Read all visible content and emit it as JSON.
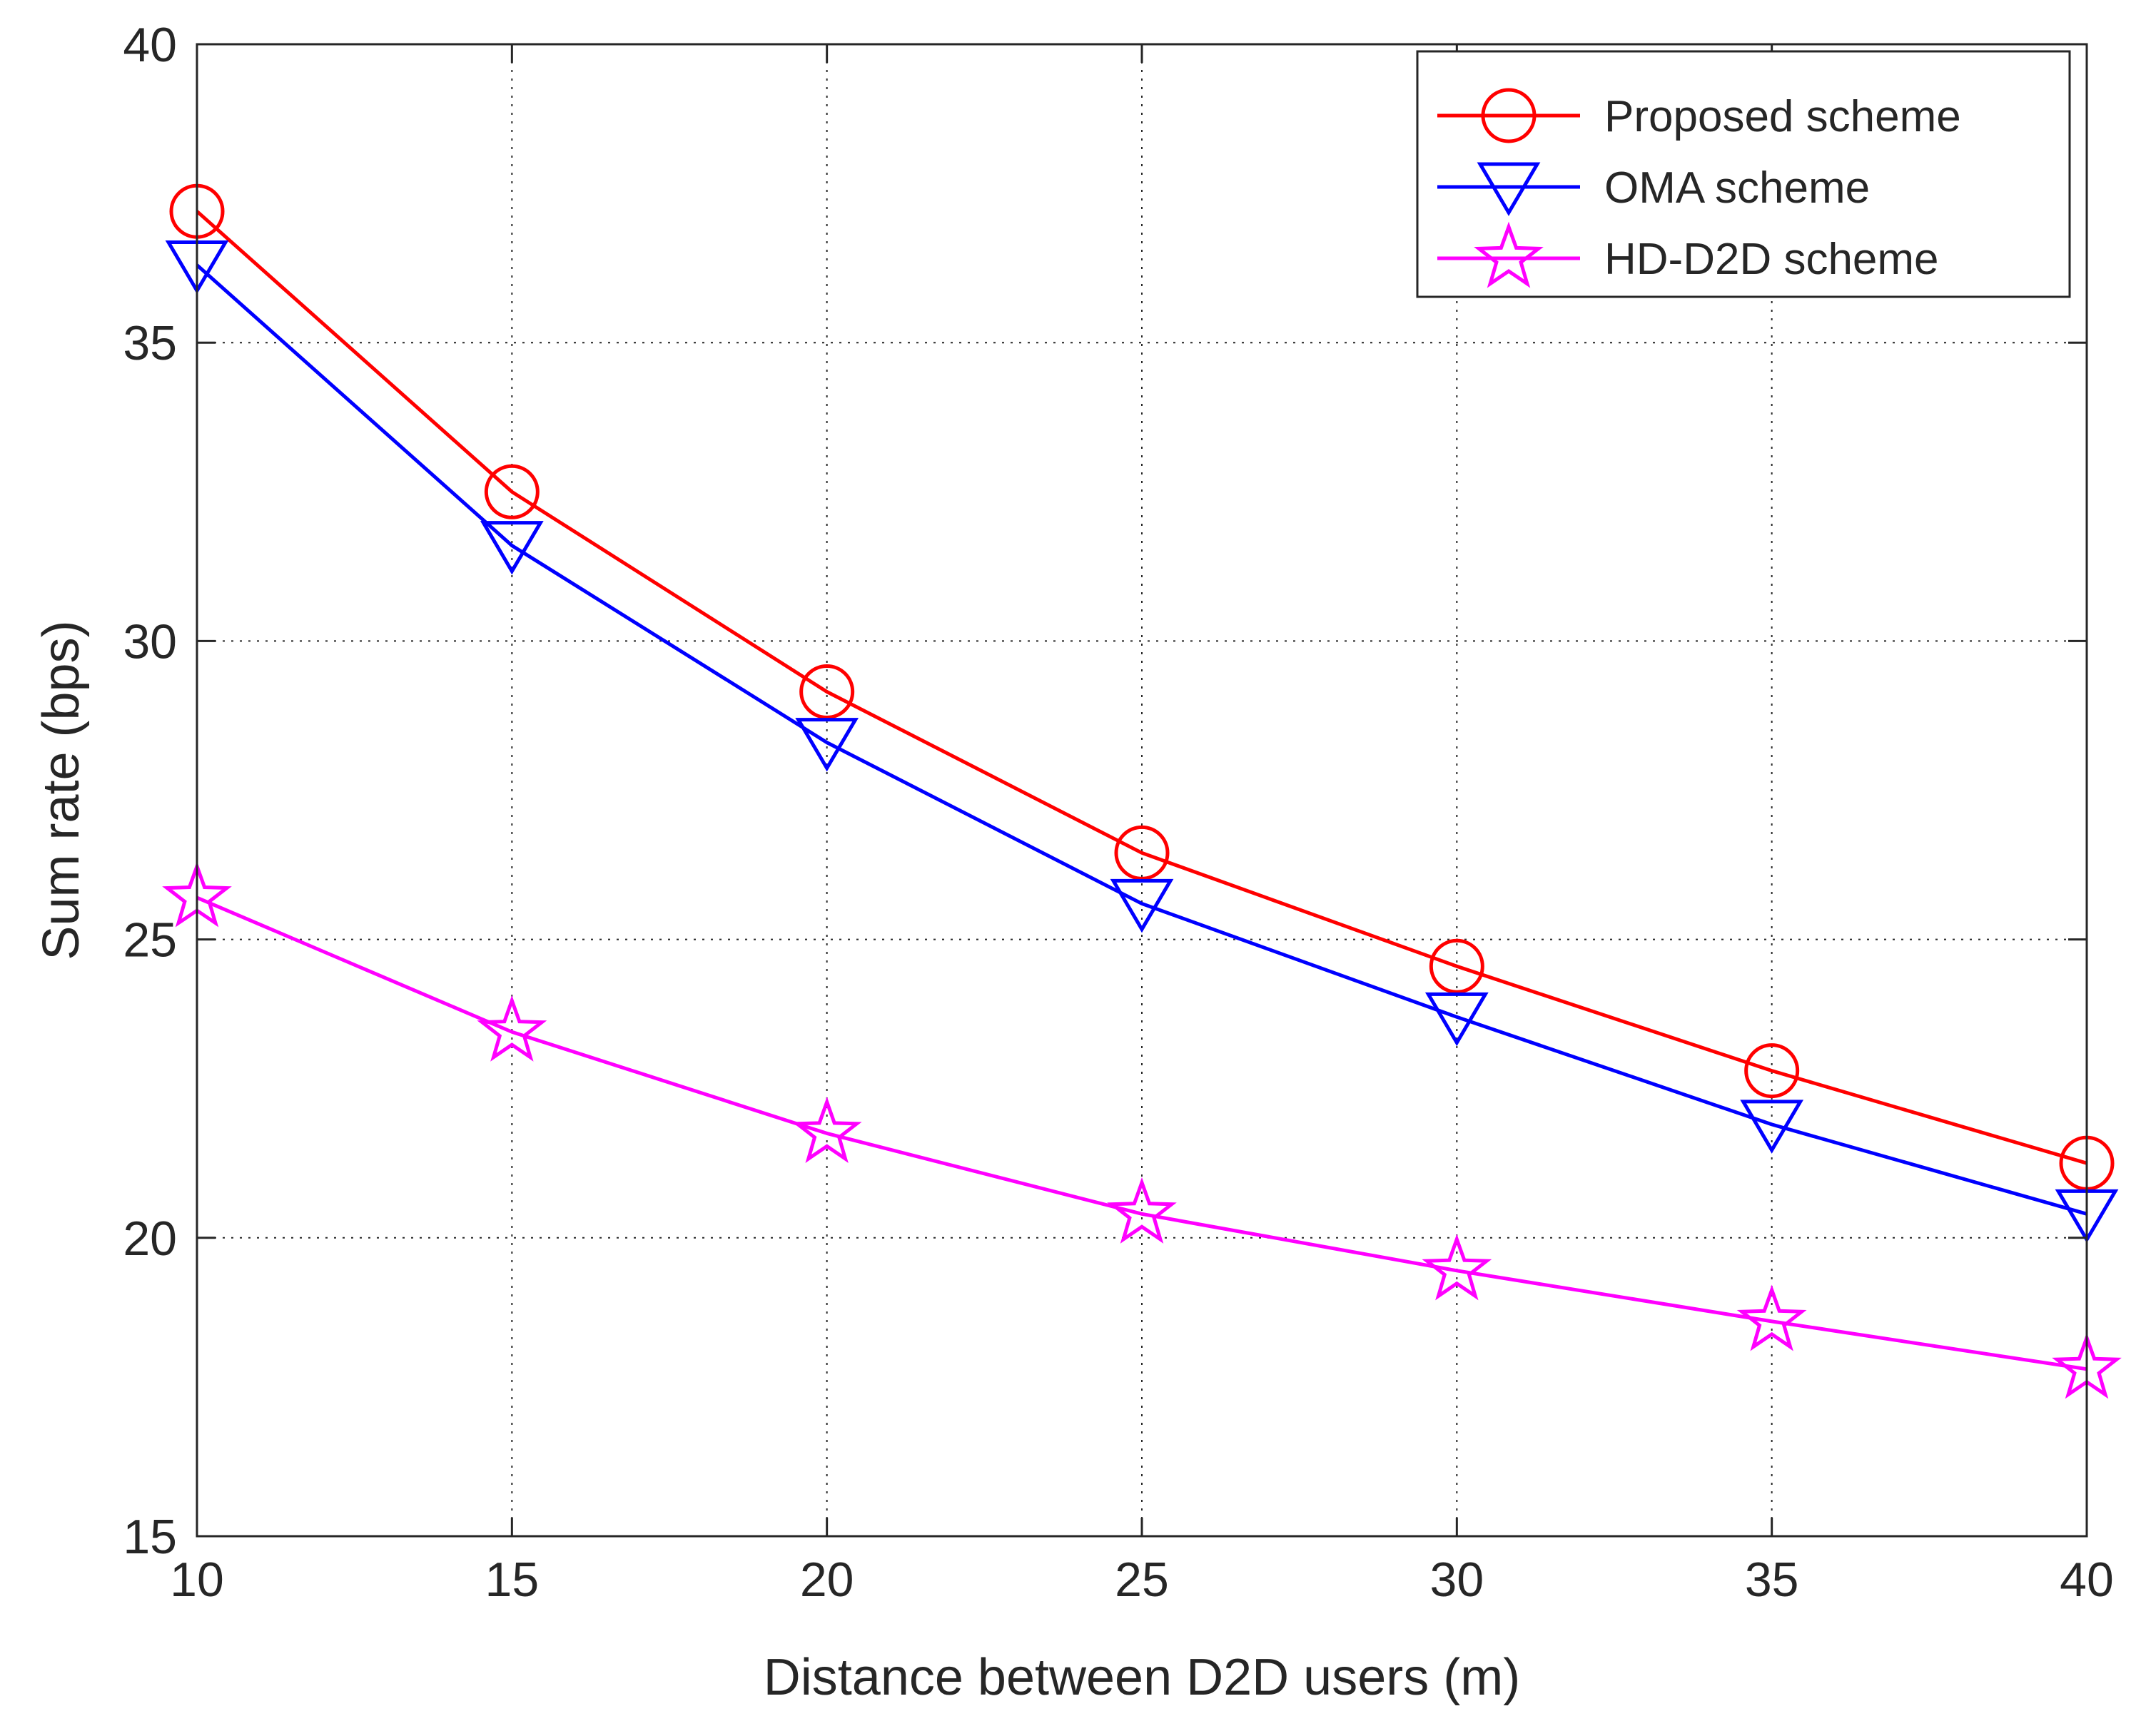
{
  "chart_data": {
    "type": "line",
    "title": "",
    "xlabel": "Distance between D2D users (m)",
    "ylabel": "Sum rate (bps)",
    "xlim": [
      10,
      40
    ],
    "ylim": [
      15,
      40
    ],
    "xticks": [
      10,
      15,
      20,
      25,
      30,
      35,
      40
    ],
    "yticks": [
      15,
      20,
      25,
      30,
      35,
      40
    ],
    "grid": true,
    "legend_position": "top-right",
    "x": [
      10,
      15,
      20,
      25,
      30,
      35,
      40
    ],
    "series": [
      {
        "name": "Proposed scheme",
        "color": "#ff0000",
        "marker": "circle",
        "values": [
          37.2,
          32.5,
          29.15,
          26.45,
          24.55,
          22.8,
          21.25
        ]
      },
      {
        "name": "OMA scheme",
        "color": "#0000ff",
        "marker": "triangle-down",
        "values": [
          36.3,
          31.6,
          28.3,
          25.6,
          23.7,
          21.9,
          20.4
        ]
      },
      {
        "name": "HD-D2D scheme",
        "color": "#ff00ff",
        "marker": "pentagram",
        "values": [
          25.7,
          23.45,
          21.75,
          20.4,
          19.45,
          18.6,
          17.8
        ]
      }
    ]
  }
}
